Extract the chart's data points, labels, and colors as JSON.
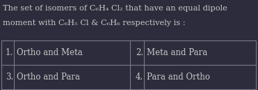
{
  "background_color": "#2c2c3c",
  "text_color": "#c8c8c8",
  "title_line1": "The set of isomers of C₆H₄ Cl₂ that have an equal dipole",
  "title_line2": "moment with C₆H₅ Cl & C₆H₆ respectively is :",
  "options": [
    [
      "1.",
      "Ortho and Meta",
      "2.",
      "Meta and Para"
    ],
    [
      "3.",
      "Ortho and Para",
      "4.",
      "Para and Ortho"
    ]
  ],
  "background_color_table": "#2c2c3c",
  "line_color": "#7a7a8a",
  "font_size_title": 8.2,
  "font_size_options": 8.5,
  "figsize": [
    3.71,
    1.29
  ],
  "dpi": 100
}
